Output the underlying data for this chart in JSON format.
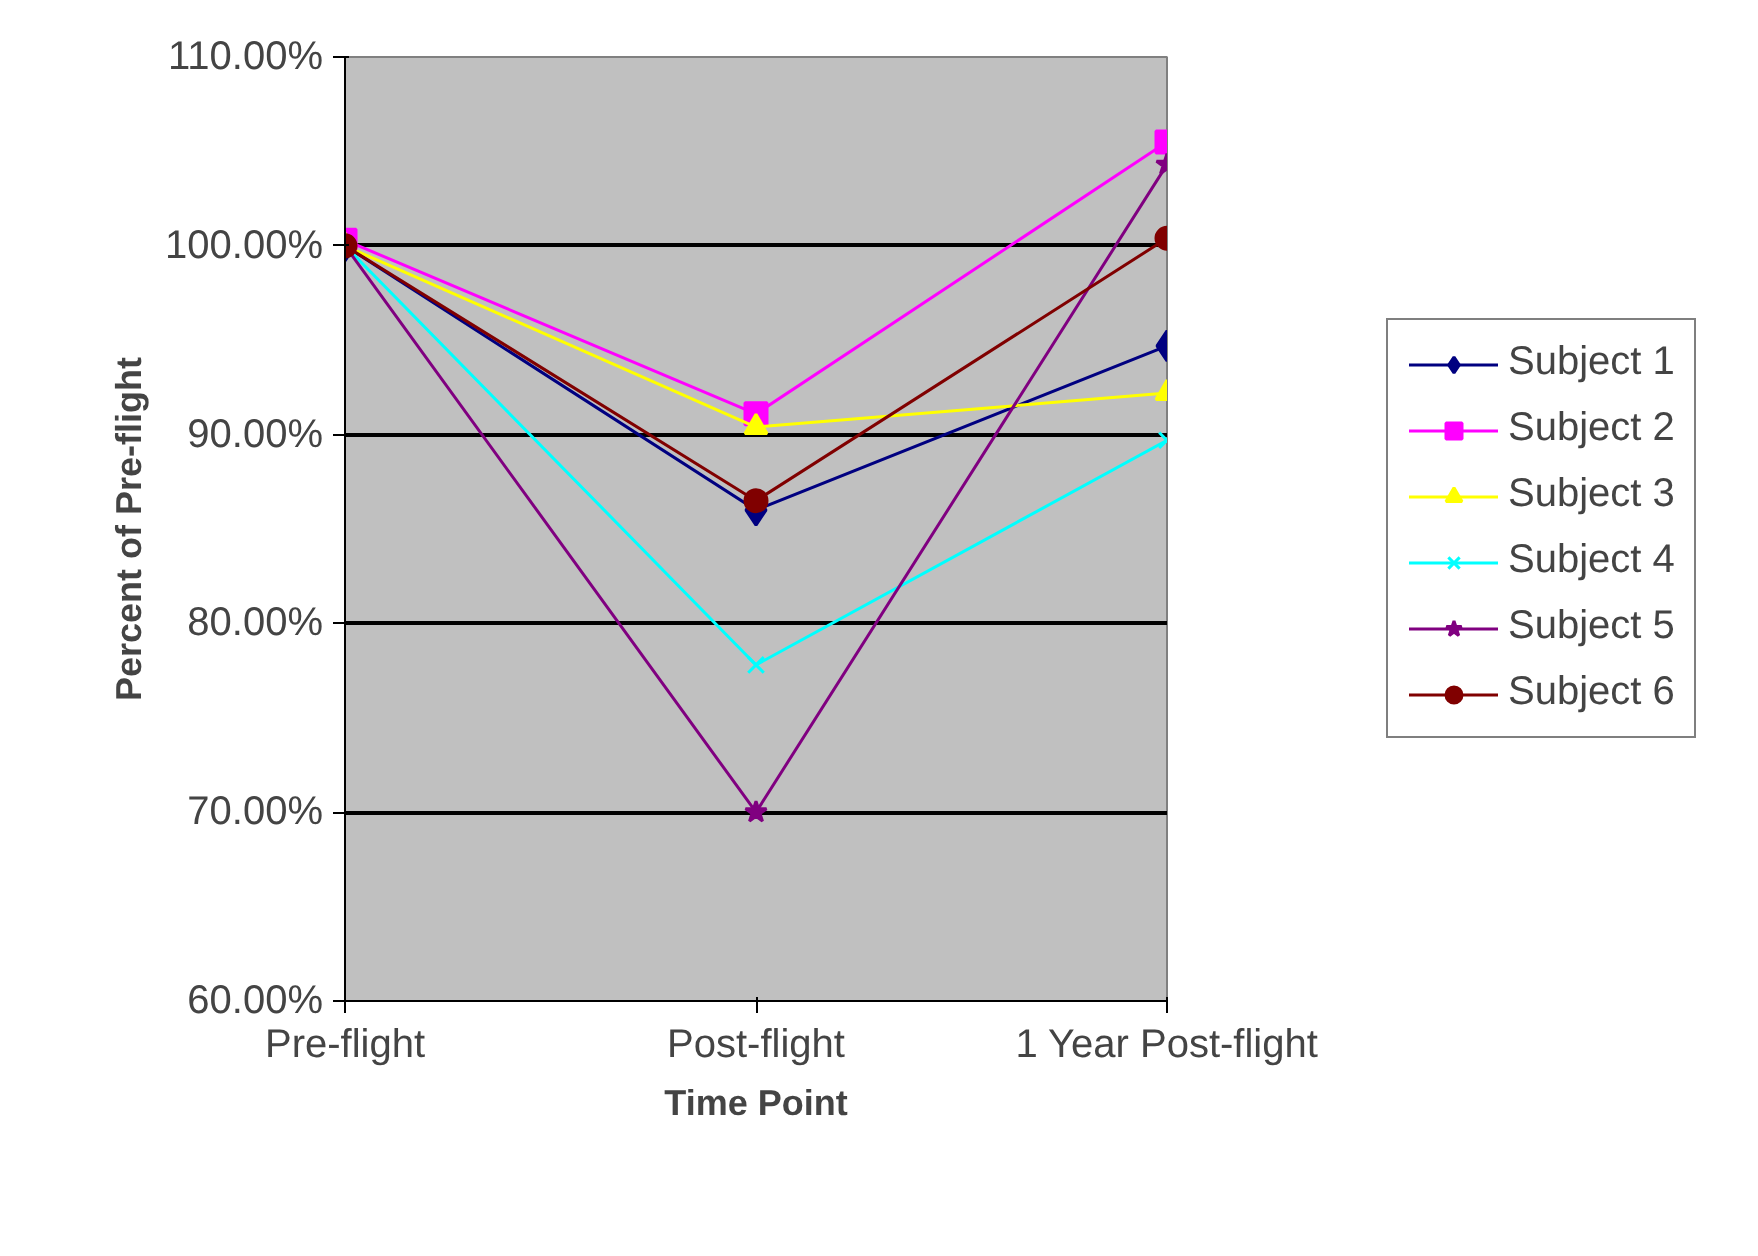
{
  "chart_data": {
    "type": "line",
    "xlabel": "Time Point",
    "ylabel": "Percent of Pre-flight",
    "categories": [
      "Pre-flight",
      "Post-flight",
      "1 Year Post-flight"
    ],
    "ylim": [
      60,
      110
    ],
    "yticks": [
      {
        "value": 60,
        "label": "60.00%"
      },
      {
        "value": 70,
        "label": "70.00%"
      },
      {
        "value": 80,
        "label": "80.00%"
      },
      {
        "value": 90,
        "label": "90.00%"
      },
      {
        "value": 100,
        "label": "100.00%"
      },
      {
        "value": 110,
        "label": "110.00%"
      }
    ],
    "grid": "y",
    "legend": "right",
    "series": [
      {
        "name": "Subject 1",
        "color": "#000080",
        "marker": "diamond",
        "values": [
          100,
          86,
          94.7
        ]
      },
      {
        "name": "Subject 2",
        "color": "#ff00ff",
        "marker": "square",
        "values": [
          100.3,
          91.1,
          105.5
        ]
      },
      {
        "name": "Subject 3",
        "color": "#ffff00",
        "marker": "triangle",
        "values": [
          100,
          90.4,
          92.2
        ]
      },
      {
        "name": "Subject 4",
        "color": "#00ffff",
        "marker": "cross",
        "values": [
          100,
          77.8,
          89.7
        ]
      },
      {
        "name": "Subject 5",
        "color": "#800080",
        "marker": "star",
        "values": [
          100,
          70,
          104.3
        ]
      },
      {
        "name": "Subject 6",
        "color": "#800000",
        "marker": "circle",
        "values": [
          100,
          86.5,
          100.4
        ]
      }
    ]
  }
}
